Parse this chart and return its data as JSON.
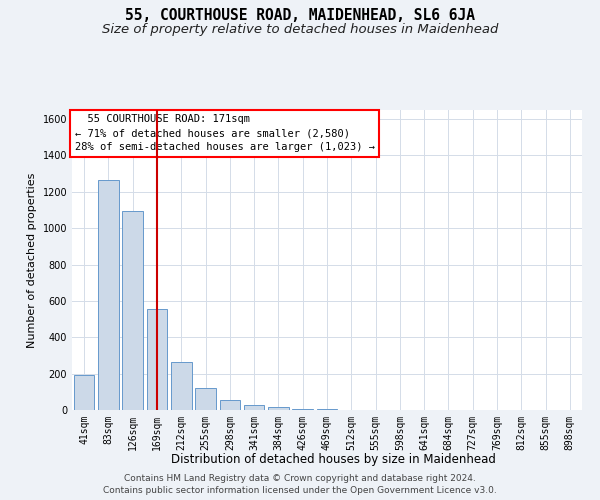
{
  "title": "55, COURTHOUSE ROAD, MAIDENHEAD, SL6 6JA",
  "subtitle": "Size of property relative to detached houses in Maidenhead",
  "xlabel": "Distribution of detached houses by size in Maidenhead",
  "ylabel": "Number of detached properties",
  "footer_line1": "Contains HM Land Registry data © Crown copyright and database right 2024.",
  "footer_line2": "Contains public sector information licensed under the Open Government Licence v3.0.",
  "bar_labels": [
    "41sqm",
    "83sqm",
    "126sqm",
    "169sqm",
    "212sqm",
    "255sqm",
    "298sqm",
    "341sqm",
    "384sqm",
    "426sqm",
    "469sqm",
    "512sqm",
    "555sqm",
    "598sqm",
    "641sqm",
    "684sqm",
    "727sqm",
    "769sqm",
    "812sqm",
    "855sqm",
    "898sqm"
  ],
  "bar_values": [
    193,
    1263,
    1097,
    557,
    262,
    120,
    55,
    25,
    17,
    8,
    5,
    2,
    1,
    1,
    0,
    0,
    0,
    0,
    0,
    0,
    0
  ],
  "bar_color": "#ccd9e8",
  "bar_edge_color": "#6699cc",
  "grid_color": "#d4dce8",
  "redline_x": 3.0,
  "redline_color": "#cc0000",
  "ylim": [
    0,
    1650
  ],
  "yticks": [
    0,
    200,
    400,
    600,
    800,
    1000,
    1200,
    1400,
    1600
  ],
  "background_color": "#eef2f7",
  "plot_background": "#ffffff",
  "title_fontsize": 10.5,
  "subtitle_fontsize": 9.5,
  "xlabel_fontsize": 8.5,
  "ylabel_fontsize": 8,
  "tick_fontsize": 7,
  "annotation_fontsize": 7.5,
  "footer_fontsize": 6.5
}
